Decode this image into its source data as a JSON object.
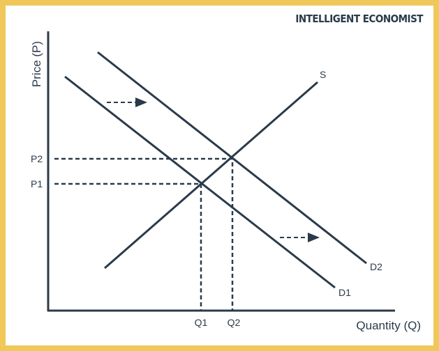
{
  "brand": "INTELLIGENT ECONOMIST",
  "axes": {
    "y_label": "Price (P)",
    "x_label": "Quantity (Q)"
  },
  "curves": {
    "supply": "S",
    "demand_1": "D1",
    "demand_2": "D2"
  },
  "prices": [
    "P1",
    "P2"
  ],
  "quantities": [
    "Q1",
    "Q2"
  ]
}
